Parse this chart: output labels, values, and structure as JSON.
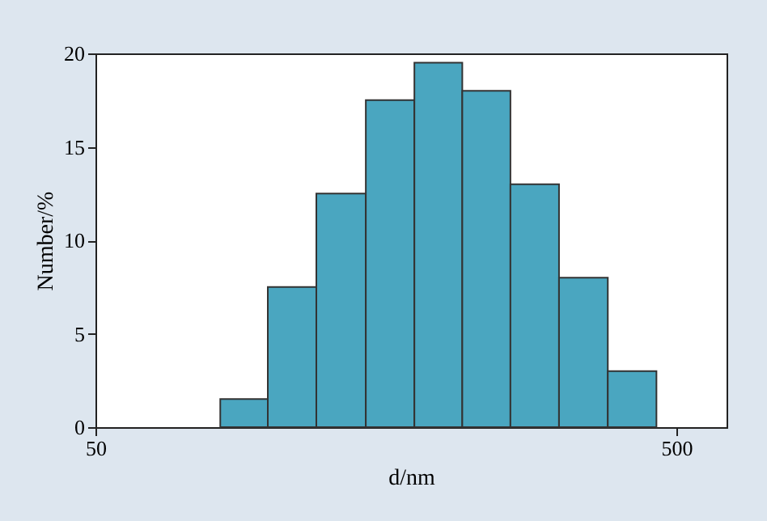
{
  "chart_data": {
    "type": "histogram",
    "xlabel": "d/nm",
    "ylabel": "Number/%",
    "bins": [
      82,
      99,
      120,
      146,
      177,
      214,
      259,
      314,
      381,
      462
    ],
    "values": [
      1.5,
      7.5,
      12.5,
      17.5,
      19.5,
      18,
      13,
      8,
      3
    ],
    "color": "#4aa6c0",
    "log": "x",
    "xlim": [
      50,
      610
    ],
    "xticks": [
      50,
      500
    ],
    "ylim": [
      0,
      20
    ],
    "yticks": [
      0,
      5,
      10,
      15,
      20
    ],
    "grid": false
  }
}
